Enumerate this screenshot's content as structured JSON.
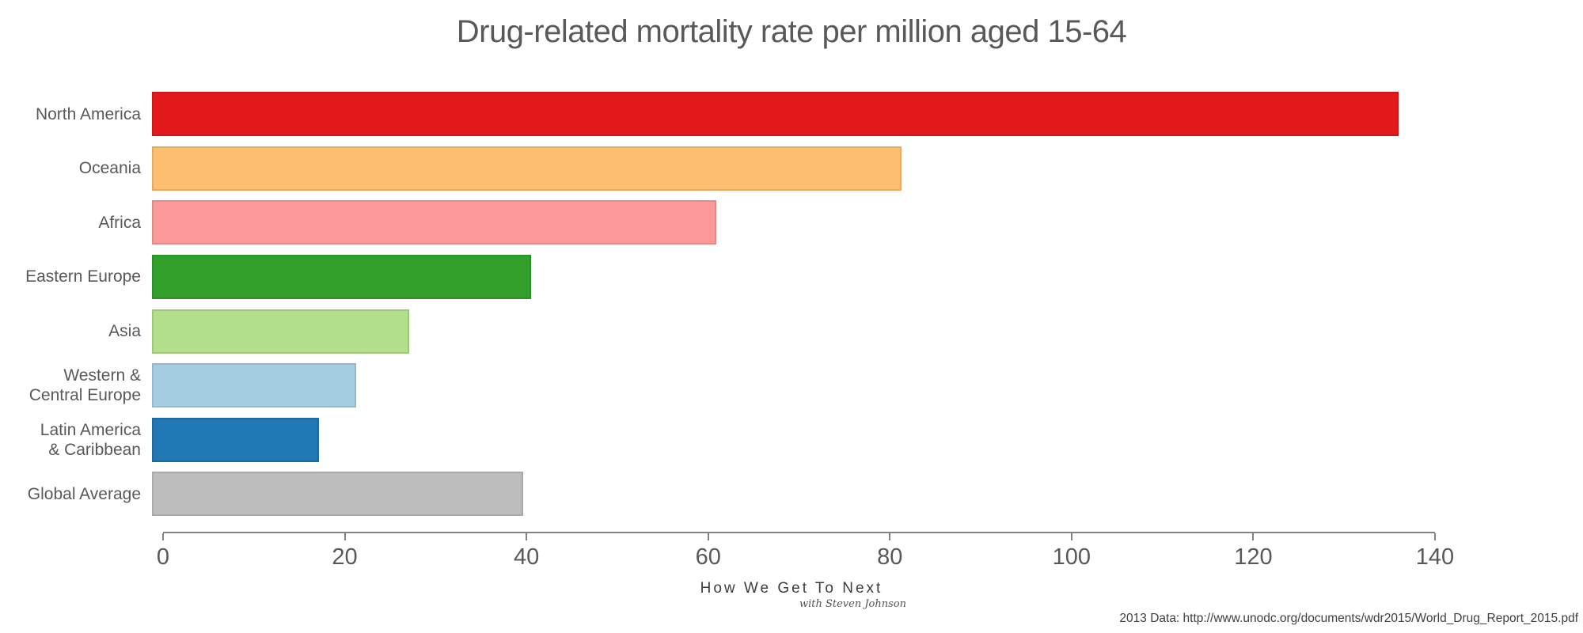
{
  "title": "Drug-related mortality rate per million aged 15-64",
  "chart_data": {
    "type": "bar",
    "orientation": "horizontal",
    "title": "Drug-related mortality rate per million aged 15-64",
    "categories": [
      "North America",
      "Oceania",
      "Africa",
      "Eastern Europe",
      "Asia",
      "Western &\nCentral Europe",
      "Latin America\n& Caribbean",
      "Global Average"
    ],
    "values": [
      137.2,
      82.5,
      62.1,
      41.7,
      28.3,
      22.5,
      18.4,
      40.9
    ],
    "colors": [
      "#e31a1c",
      "#fdbf6f",
      "#fb9a99",
      "#33a02c",
      "#b2df8a",
      "#a6cee3",
      "#1f78b4",
      "#bdbdbd"
    ],
    "xlabel": "",
    "ylabel": "",
    "xlim": [
      0,
      140
    ],
    "x_ticks": [
      0,
      20,
      40,
      60,
      80,
      100,
      120,
      140
    ],
    "grid": false,
    "legend": false
  },
  "branding": {
    "name": "How We Get To Next",
    "byline": "with Steven Johnson"
  },
  "source": {
    "text": "2013 Data: http://www.unodc.org/documents/wdr2015/World_Drug_Report_2015.pdf"
  },
  "style_colors": {
    "text": "#58595b",
    "axis": "#828386",
    "background": "#ffffff"
  }
}
